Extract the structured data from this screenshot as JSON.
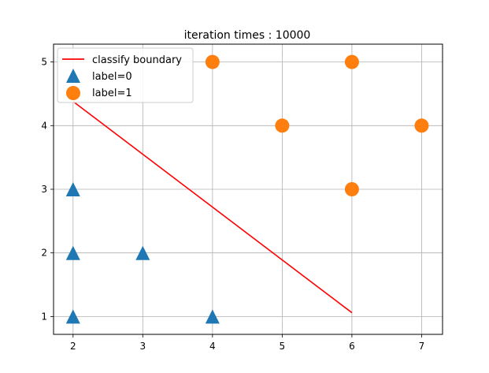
{
  "chart_data": {
    "type": "scatter",
    "title": "iteration times : 10000",
    "xlabel": "",
    "ylabel": "",
    "xlim": [
      1.72,
      7.3
    ],
    "ylim": [
      0.72,
      5.28
    ],
    "xticks": [
      2,
      3,
      4,
      5,
      6,
      7
    ],
    "yticks": [
      1,
      2,
      3,
      4,
      5
    ],
    "grid": true,
    "legend_position": "top-left",
    "boundary": {
      "name": "classify boundary",
      "color": "#ff0000",
      "x": [
        2,
        6
      ],
      "y": [
        4.38,
        1.06
      ]
    },
    "series": [
      {
        "name": "label=0",
        "marker": "triangle",
        "color": "#1f77b4",
        "points": [
          [
            2,
            1
          ],
          [
            2,
            2
          ],
          [
            2,
            3
          ],
          [
            3,
            2
          ],
          [
            4,
            1
          ]
        ]
      },
      {
        "name": "label=1",
        "marker": "circle",
        "color": "#ff7f0e",
        "points": [
          [
            4,
            5
          ],
          [
            5,
            4
          ],
          [
            6,
            5
          ],
          [
            6,
            3
          ],
          [
            7,
            4
          ]
        ]
      }
    ]
  }
}
